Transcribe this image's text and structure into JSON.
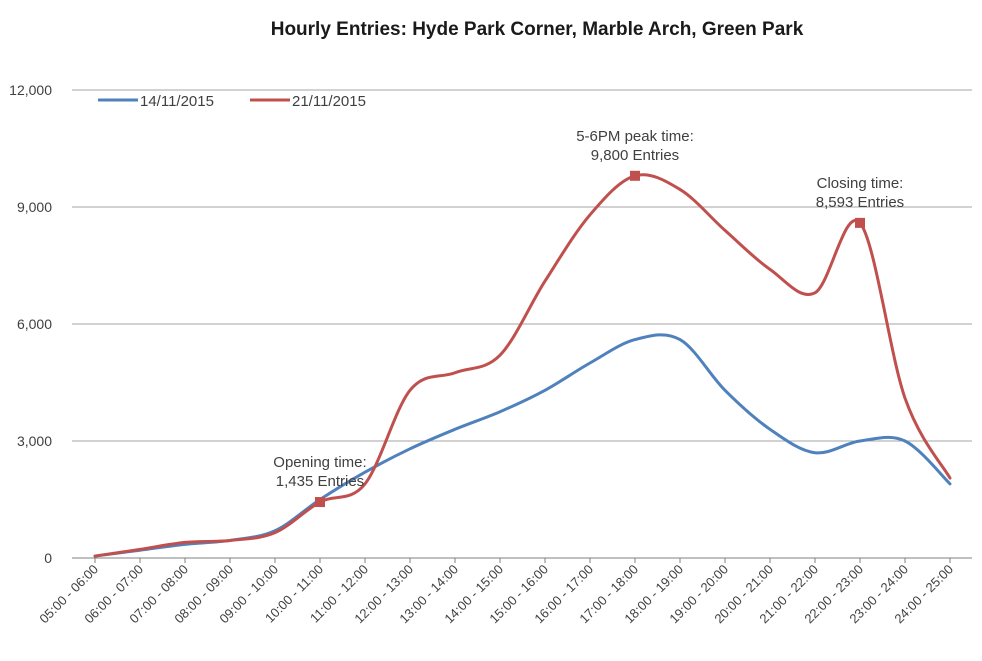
{
  "chart_data": {
    "type": "line",
    "title": "Hourly Entries: Hyde Park Corner, Marble Arch, Green Park",
    "xlabel": "",
    "ylabel": "",
    "ylim": [
      0,
      12000
    ],
    "yticks": [
      0,
      3000,
      6000,
      9000,
      12000
    ],
    "ytick_labels": [
      "0",
      "3,000",
      "6,000",
      "9,000",
      "12,000"
    ],
    "grid": true,
    "legend_position": "top-left",
    "categories": [
      "05:00 - 06:00",
      "06:00 - 07:00",
      "07:00 - 08:00",
      "08:00 - 09:00",
      "09:00 - 10:00",
      "10:00 - 11:00",
      "11:00 - 12:00",
      "12:00 - 13:00",
      "13:00 - 14:00",
      "14:00 - 15:00",
      "15:00 - 16:00",
      "16:00 - 17:00",
      "17:00 - 18:00",
      "18:00 - 19:00",
      "19:00 - 20:00",
      "20:00 - 21:00",
      "21:00 - 22:00",
      "22:00 - 23:00",
      "23:00 - 24:00",
      "24:00 - 25:00"
    ],
    "series": [
      {
        "name": "14/11/2015",
        "color": "#4f81bd",
        "values": [
          50,
          200,
          350,
          450,
          700,
          1500,
          2200,
          2800,
          3300,
          3750,
          4300,
          5000,
          5600,
          5600,
          4300,
          3300,
          2700,
          3000,
          3000,
          1900
        ]
      },
      {
        "name": "21/11/2015",
        "color": "#c0504d",
        "values": [
          50,
          220,
          400,
          450,
          650,
          1435,
          1900,
          4300,
          4750,
          5200,
          7100,
          8800,
          9800,
          9450,
          8400,
          7400,
          6800,
          8593,
          4100,
          2050
        ]
      }
    ],
    "annotations": [
      {
        "series": 1,
        "index": 5,
        "lines": [
          "Opening time:",
          "1,435 Entries"
        ]
      },
      {
        "series": 1,
        "index": 12,
        "lines": [
          "5-6PM peak time:",
          "9,800 Entries"
        ]
      },
      {
        "series": 1,
        "index": 17,
        "lines": [
          "Closing time:",
          "8,593 Entries"
        ]
      }
    ]
  }
}
